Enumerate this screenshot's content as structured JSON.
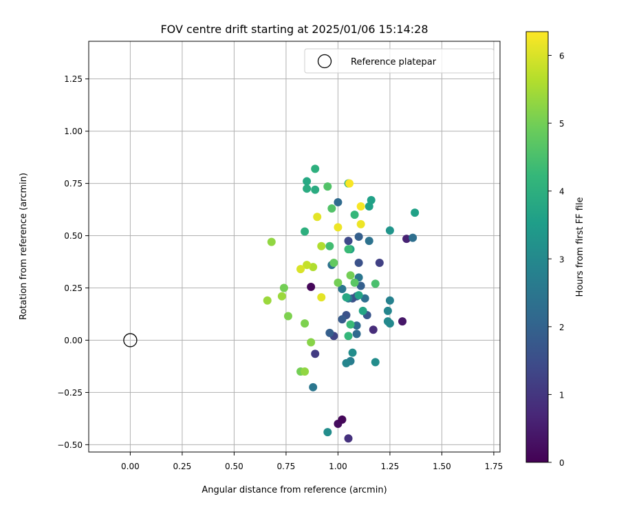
{
  "chart_data": {
    "type": "scatter",
    "title": "FOV centre drift starting at 2025/01/06 15:14:28",
    "xlabel": "Angular distance from reference (arcmin)",
    "ylabel": "Rotation from reference (arcmin)",
    "xlim": [
      -0.2,
      1.78
    ],
    "ylim": [
      -0.535,
      1.43
    ],
    "xticks": [
      "0.00",
      "0.25",
      "0.50",
      "0.75",
      "1.00",
      "1.25",
      "1.50",
      "1.75"
    ],
    "yticks": [
      "−0.50",
      "−0.25",
      "0.00",
      "0.25",
      "0.50",
      "0.75",
      "1.00",
      "1.25"
    ],
    "grid": true,
    "legend": {
      "location": "upper right",
      "entries": [
        "Reference platepar"
      ]
    },
    "reference_point": {
      "x": 0.0,
      "y": 0.0
    },
    "colorbar": {
      "label": "Hours from first FF file",
      "colormap": "viridis",
      "range": [
        0,
        6.35
      ],
      "ticks": [
        "0",
        "1",
        "2",
        "3",
        "4",
        "5",
        "6"
      ]
    },
    "series": [
      {
        "points": [
          {
            "x": 0.87,
            "y": 0.255,
            "c": 0.1
          },
          {
            "x": 1.0,
            "y": -0.4,
            "c": 0.2
          },
          {
            "x": 1.02,
            "y": -0.38,
            "c": 0.1
          },
          {
            "x": 1.31,
            "y": 0.09,
            "c": 0.4
          },
          {
            "x": 1.33,
            "y": 0.485,
            "c": 0.6
          },
          {
            "x": 1.05,
            "y": -0.47,
            "c": 0.9
          },
          {
            "x": 1.17,
            "y": 0.05,
            "c": 0.8
          },
          {
            "x": 0.89,
            "y": -0.065,
            "c": 1.1
          },
          {
            "x": 1.2,
            "y": 0.37,
            "c": 1.2
          },
          {
            "x": 0.98,
            "y": 0.02,
            "c": 1.3
          },
          {
            "x": 1.05,
            "y": 0.475,
            "c": 1.4
          },
          {
            "x": 1.1,
            "y": 0.37,
            "c": 1.6
          },
          {
            "x": 1.14,
            "y": 0.12,
            "c": 1.7
          },
          {
            "x": 1.04,
            "y": 0.12,
            "c": 1.6
          },
          {
            "x": 1.02,
            "y": 0.1,
            "c": 1.8
          },
          {
            "x": 1.09,
            "y": 0.21,
            "c": 1.8
          },
          {
            "x": 1.1,
            "y": 0.495,
            "c": 1.9
          },
          {
            "x": 1.11,
            "y": 0.26,
            "c": 1.9
          },
          {
            "x": 0.96,
            "y": 0.035,
            "c": 1.9
          },
          {
            "x": 1.07,
            "y": 0.2,
            "c": 1.6
          },
          {
            "x": 1.0,
            "y": 0.66,
            "c": 2.2
          },
          {
            "x": 1.13,
            "y": 0.2,
            "c": 2.3
          },
          {
            "x": 1.09,
            "y": 0.03,
            "c": 2.2
          },
          {
            "x": 1.09,
            "y": 0.07,
            "c": 2.2
          },
          {
            "x": 1.36,
            "y": 0.49,
            "c": 2.3
          },
          {
            "x": 1.15,
            "y": 0.475,
            "c": 2.4
          },
          {
            "x": 0.97,
            "y": 0.36,
            "c": 2.4
          },
          {
            "x": 1.02,
            "y": 0.245,
            "c": 2.5
          },
          {
            "x": 1.1,
            "y": 0.3,
            "c": 2.5
          },
          {
            "x": 0.88,
            "y": -0.225,
            "c": 2.5
          },
          {
            "x": 1.05,
            "y": 0.2,
            "c": 2.6
          },
          {
            "x": 1.06,
            "y": -0.1,
            "c": 2.7
          },
          {
            "x": 1.25,
            "y": 0.19,
            "c": 2.8
          },
          {
            "x": 1.04,
            "y": -0.11,
            "c": 2.9
          },
          {
            "x": 1.24,
            "y": 0.14,
            "c": 2.9
          },
          {
            "x": 1.24,
            "y": 0.09,
            "c": 3.0
          },
          {
            "x": 1.25,
            "y": 0.08,
            "c": 3.0
          },
          {
            "x": 0.95,
            "y": -0.44,
            "c": 3.1
          },
          {
            "x": 1.07,
            "y": -0.06,
            "c": 3.1
          },
          {
            "x": 1.18,
            "y": -0.105,
            "c": 3.1
          },
          {
            "x": 1.25,
            "y": 0.525,
            "c": 3.3
          },
          {
            "x": 1.15,
            "y": 0.64,
            "c": 3.6
          },
          {
            "x": 1.16,
            "y": 0.67,
            "c": 3.6
          },
          {
            "x": 1.37,
            "y": 0.61,
            "c": 3.6
          },
          {
            "x": 1.06,
            "y": 0.435,
            "c": 3.7
          },
          {
            "x": 1.1,
            "y": 0.215,
            "c": 3.7
          },
          {
            "x": 1.12,
            "y": 0.14,
            "c": 3.7
          },
          {
            "x": 1.04,
            "y": 0.205,
            "c": 3.8
          },
          {
            "x": 0.85,
            "y": 0.725,
            "c": 3.9
          },
          {
            "x": 0.85,
            "y": 0.76,
            "c": 3.8
          },
          {
            "x": 0.89,
            "y": 0.72,
            "c": 3.9
          },
          {
            "x": 0.89,
            "y": 0.82,
            "c": 4.0
          },
          {
            "x": 0.84,
            "y": 0.52,
            "c": 4.0
          },
          {
            "x": 1.08,
            "y": 0.6,
            "c": 4.2
          },
          {
            "x": 1.05,
            "y": 0.02,
            "c": 4.2
          },
          {
            "x": 1.05,
            "y": 0.435,
            "c": 4.3
          },
          {
            "x": 1.06,
            "y": 0.075,
            "c": 4.3
          },
          {
            "x": 0.96,
            "y": 0.45,
            "c": 4.4
          },
          {
            "x": 1.18,
            "y": 0.27,
            "c": 4.5
          },
          {
            "x": 0.95,
            "y": 0.735,
            "c": 4.6
          },
          {
            "x": 0.97,
            "y": 0.63,
            "c": 4.6
          },
          {
            "x": 1.05,
            "y": 0.75,
            "c": 4.2
          },
          {
            "x": 1.08,
            "y": 0.275,
            "c": 4.7
          },
          {
            "x": 0.98,
            "y": 0.37,
            "c": 4.8
          },
          {
            "x": 1.0,
            "y": 0.275,
            "c": 5.0
          },
          {
            "x": 1.06,
            "y": 0.31,
            "c": 5.0
          },
          {
            "x": 0.74,
            "y": 0.25,
            "c": 5.0
          },
          {
            "x": 0.82,
            "y": -0.15,
            "c": 5.0
          },
          {
            "x": 0.76,
            "y": 0.115,
            "c": 5.1
          },
          {
            "x": 0.84,
            "y": 0.08,
            "c": 5.1
          },
          {
            "x": 0.87,
            "y": -0.01,
            "c": 5.2
          },
          {
            "x": 0.84,
            "y": -0.15,
            "c": 5.3
          },
          {
            "x": 0.73,
            "y": 0.21,
            "c": 5.4
          },
          {
            "x": 0.66,
            "y": 0.19,
            "c": 5.4
          },
          {
            "x": 0.68,
            "y": 0.47,
            "c": 5.3
          },
          {
            "x": 0.92,
            "y": 0.45,
            "c": 5.6
          },
          {
            "x": 0.88,
            "y": 0.35,
            "c": 5.6
          },
          {
            "x": 0.85,
            "y": 0.36,
            "c": 5.8
          },
          {
            "x": 0.82,
            "y": 0.34,
            "c": 6.0
          },
          {
            "x": 0.92,
            "y": 0.205,
            "c": 6.1
          },
          {
            "x": 0.9,
            "y": 0.59,
            "c": 6.1
          },
          {
            "x": 1.0,
            "y": 0.54,
            "c": 6.2
          },
          {
            "x": 1.11,
            "y": 0.555,
            "c": 6.2
          },
          {
            "x": 1.11,
            "y": 0.64,
            "c": 6.3
          },
          {
            "x": 1.055,
            "y": 0.75,
            "c": 6.3
          }
        ]
      }
    ]
  }
}
